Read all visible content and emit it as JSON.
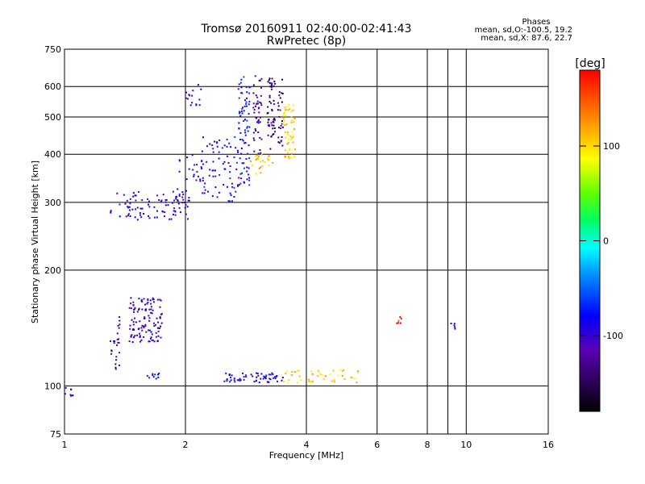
{
  "header": {
    "title": "Tromsø 20160911 02:40:00-02:41:43",
    "subtitle": "RwPretec (8p)"
  },
  "phases": {
    "heading": "Phases",
    "line_o": "mean, sd,O:-100.5, 19.2",
    "line_x": "mean, sd,X:  87.6, 22.7"
  },
  "colorbar": {
    "unit_label": "[deg]",
    "ticks": [
      {
        "value": 100,
        "label": "100"
      },
      {
        "value": 0,
        "label": "0"
      },
      {
        "value": -100,
        "label": "-100"
      }
    ],
    "range": [
      -180,
      180
    ]
  },
  "chart_data": {
    "type": "scatter",
    "title": "Tromsø 20160911 02:40:00-02:41:43",
    "subtitle": "RwPretec (8p)",
    "xlabel": "Frequency [MHz]",
    "ylabel": "Stationary phase Virtual Height [km]",
    "xscale": "log",
    "yscale": "log",
    "xlim": [
      1,
      16
    ],
    "ylim": [
      75,
      750
    ],
    "x_ticks": [
      {
        "value": 1,
        "label": "1"
      },
      {
        "value": 2,
        "label": "2"
      },
      {
        "value": 4,
        "label": "4"
      },
      {
        "value": 6,
        "label": "6"
      },
      {
        "value": 8,
        "label": "8"
      },
      {
        "value": 10,
        "label": "10"
      },
      {
        "value": 16,
        "label": "16"
      }
    ],
    "x_minor_gridlines": [
      9
    ],
    "y_ticks": [
      {
        "value": 75,
        "label": "75"
      },
      {
        "value": 100,
        "label": "100"
      },
      {
        "value": 200,
        "label": "200"
      },
      {
        "value": 300,
        "label": "300"
      },
      {
        "value": 400,
        "label": "400"
      },
      {
        "value": 500,
        "label": "500"
      },
      {
        "value": 600,
        "label": "600"
      },
      {
        "value": 750,
        "label": "750"
      }
    ],
    "color_scale": "phase in degrees, rainbow from black (-180) through blue, cyan, green, yellow to red (180)",
    "clusters": [
      {
        "name": "F-trace lower branch",
        "x": [
          1.3,
          2.05
        ],
        "y": [
          270,
          320
        ],
        "phase": -105,
        "n": 90
      },
      {
        "name": "F-trace rising to 400 km",
        "x": [
          1.9,
          2.2
        ],
        "y": [
          300,
          410
        ],
        "phase": -100,
        "n": 30
      },
      {
        "name": "F-trace mid",
        "x": [
          2.2,
          2.7
        ],
        "y": [
          300,
          450
        ],
        "phase": -90,
        "n": 70
      },
      {
        "name": "F-trace top 2.8 MHz",
        "x": [
          2.7,
          2.9
        ],
        "y": [
          330,
          640
        ],
        "phase": -88,
        "n": 80
      },
      {
        "name": "F-trace upper near 2 MHz",
        "x": [
          2.0,
          2.2
        ],
        "y": [
          520,
          610
        ],
        "phase": -110,
        "n": 15
      },
      {
        "name": "F-trace 3.0 MHz",
        "x": [
          2.95,
          3.1
        ],
        "y": [
          400,
          640
        ],
        "phase": -125,
        "n": 45
      },
      {
        "name": "F-trace 3.2 MHz",
        "x": [
          3.2,
          3.35
        ],
        "y": [
          400,
          640
        ],
        "phase": -140,
        "n": 50
      },
      {
        "name": "F-trace 3.45 MHz",
        "x": [
          3.4,
          3.5
        ],
        "y": [
          420,
          640
        ],
        "phase": -140,
        "n": 25
      },
      {
        "name": "X-trace yellow 3.6 MHz",
        "x": [
          3.5,
          3.75
        ],
        "y": [
          390,
          540
        ],
        "phase": 105,
        "n": 60
      },
      {
        "name": "X-trace yellow 3.1 MHz",
        "x": [
          2.9,
          3.3
        ],
        "y": [
          355,
          400
        ],
        "phase": 110,
        "n": 25
      },
      {
        "name": "Es cluster 1.5 MHz",
        "x": [
          1.45,
          1.75
        ],
        "y": [
          130,
          170
        ],
        "phase": -110,
        "n": 120
      },
      {
        "name": "Es cluster 1.3 MHz",
        "x": [
          1.3,
          1.38
        ],
        "y": [
          110,
          155
        ],
        "phase": -120,
        "n": 25
      },
      {
        "name": "E-trace at 105 km",
        "x": [
          2.5,
          3.5
        ],
        "y": [
          102,
          108
        ],
        "phase": -95,
        "n": 60
      },
      {
        "name": "E-trace blue 1.6 MHz",
        "x": [
          1.6,
          1.75
        ],
        "y": [
          104,
          108
        ],
        "phase": -100,
        "n": 10
      },
      {
        "name": "E-trace X orange-yellow",
        "x": [
          3.5,
          5.5
        ],
        "y": [
          102,
          110
        ],
        "phase": 105,
        "n": 45
      },
      {
        "name": "Low echoes near 1 MHz",
        "x": [
          1.0,
          1.05
        ],
        "y": [
          94,
          99
        ],
        "phase": -80,
        "n": 8
      },
      {
        "name": "Red echoes 6.8 MHz",
        "x": [
          6.7,
          6.9
        ],
        "y": [
          145,
          152
        ],
        "phase": 170,
        "n": 6
      },
      {
        "name": "Blue echoes 9.2 MHz",
        "x": [
          9.0,
          9.5
        ],
        "y": [
          140,
          146
        ],
        "phase": -105,
        "n": 5
      }
    ]
  }
}
